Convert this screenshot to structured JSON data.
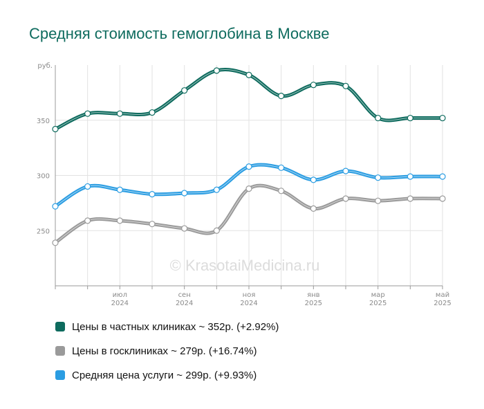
{
  "title": "Средняя стоимость гемоглобина в Москве",
  "watermark": "© KrasotaiMedicina.ru",
  "chart_data": {
    "type": "line",
    "title": "Средняя стоимость гемоглобина в Москве",
    "ylabel": "руб.",
    "xlabel": "",
    "ylim": [
      200,
      400
    ],
    "yticks": [
      250,
      300,
      350
    ],
    "grid": true,
    "x": [
      "2024-05",
      "2024-06",
      "2024-07",
      "2024-08",
      "2024-09",
      "2024-10",
      "2024-11",
      "2024-12",
      "2025-01",
      "2025-02",
      "2025-03",
      "2025-04",
      "2025-05"
    ],
    "xticks": [
      {
        "x": "2024-07",
        "month": "июл",
        "year": "2024"
      },
      {
        "x": "2024-09",
        "month": "сен",
        "year": "2024"
      },
      {
        "x": "2024-11",
        "month": "ноя",
        "year": "2024"
      },
      {
        "x": "2025-01",
        "month": "янв",
        "year": "2025"
      },
      {
        "x": "2025-03",
        "month": "мар",
        "year": "2025"
      },
      {
        "x": "2025-05",
        "month": "май",
        "year": "2025"
      }
    ],
    "series": [
      {
        "name": "Цены в частных клиниках",
        "color": "#0e6b5e",
        "values": [
          342,
          356,
          356,
          357,
          377,
          395,
          391,
          372,
          382,
          381,
          352,
          352,
          352
        ]
      },
      {
        "name": "Цены в госклиниках",
        "color": "#9a9a9a",
        "values": [
          239,
          259,
          259,
          256,
          252,
          250,
          288,
          286,
          270,
          279,
          277,
          279,
          279
        ]
      },
      {
        "name": "Средняя цена услуги",
        "color": "#2b9de2",
        "values": [
          272,
          290,
          287,
          283,
          284,
          287,
          308,
          307,
          296,
          304,
          298,
          299,
          299
        ]
      }
    ]
  },
  "legend": [
    {
      "label": "Цены в частных клиниках ~ 352р. (+2.92%)",
      "color": "#0e6b5e"
    },
    {
      "label": "Цены в госклиниках ~ 279р. (+16.74%)",
      "color": "#9a9a9a"
    },
    {
      "label": "Средняя цена услуги ~ 299р. (+9.93%)",
      "color": "#2b9de2"
    }
  ]
}
